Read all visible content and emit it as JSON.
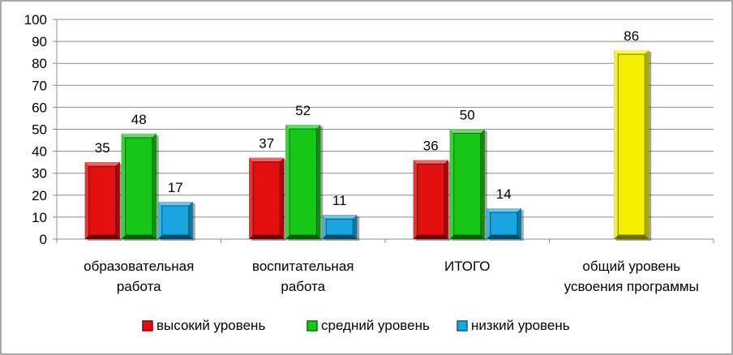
{
  "chart_data": {
    "type": "bar",
    "categories": [
      [
        "образовательная",
        "работа"
      ],
      [
        "воспитательная",
        "работа"
      ],
      [
        "ИТОГО"
      ],
      [
        "общий уровень",
        "усвоения программы"
      ]
    ],
    "series": [
      {
        "name": "высокий уровень",
        "color": "#e21010",
        "values": [
          35,
          37,
          36,
          null
        ]
      },
      {
        "name": "средний уровень",
        "color": "#18c818",
        "values": [
          48,
          52,
          50,
          null
        ]
      },
      {
        "name": "низкий уровень",
        "color": "#1aa5e0",
        "values": [
          17,
          11,
          14,
          null
        ]
      }
    ],
    "extra_bar": {
      "category_index": 3,
      "value": 86,
      "color": "#f5f000"
    },
    "ylim": [
      0,
      100
    ],
    "yticks": [
      0,
      10,
      20,
      30,
      40,
      50,
      60,
      70,
      80,
      90,
      100
    ],
    "grid": true,
    "legend_position": "bottom",
    "data_labels": true
  }
}
